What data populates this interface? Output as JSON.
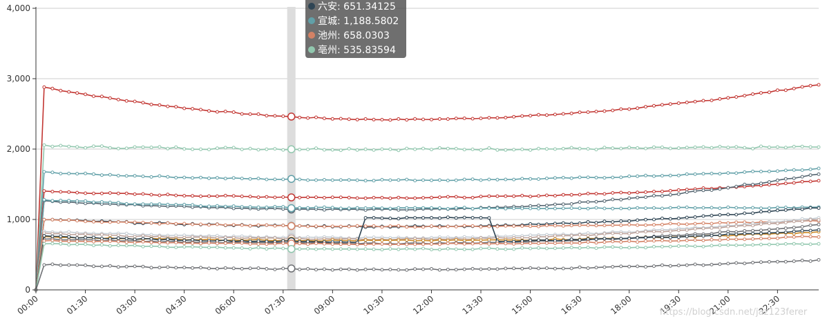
{
  "chart_data": {
    "type": "line",
    "title": "",
    "xlabel": "",
    "ylabel": "",
    "ylim": [
      0,
      4000
    ],
    "y_ticks": [
      "0",
      "1,000",
      "2,000",
      "3,000",
      "4,000"
    ],
    "x_tick_labels": [
      "00:00",
      "01:30",
      "03:00",
      "04:30",
      "06:00",
      "07:30",
      "09:00",
      "10:30",
      "12:00",
      "13:30",
      "15:00",
      "16:30",
      "18:00",
      "19:30",
      "21:00",
      "22:30"
    ],
    "x_points": 96,
    "x_interval_minutes": 15,
    "grid": true,
    "highlight_index": 31,
    "series": [
      {
        "name": "s_red_top",
        "color": "#c23531",
        "start": 2880,
        "mid": 2420,
        "end": 2920
      },
      {
        "name": "s_green_light",
        "color": "#91c7ae",
        "start": 2040,
        "mid": 2000,
        "end": 2030
      },
      {
        "name": "s_teal",
        "color": "#61a0a8",
        "start": 1670,
        "mid": 1560,
        "end": 1720
      },
      {
        "name": "s_red_2",
        "color": "#c23531",
        "start": 1400,
        "mid": 1310,
        "end": 1550
      },
      {
        "name": "s_slate",
        "color": "#546570",
        "start": 1260,
        "mid": 1140,
        "end": 1650
      },
      {
        "name": "s_teal_2",
        "color": "#61a0a8",
        "start": 1280,
        "mid": 1160,
        "end": 1170
      },
      {
        "name": "s_navy",
        "color": "#2f4554",
        "start": 1000,
        "mid": 900,
        "end": 1170
      },
      {
        "name": "s_salmon",
        "color": "#d48265",
        "start": 1000,
        "mid": 900,
        "end": 980
      },
      {
        "name": "s_pink_light",
        "color": "#c4ccd3",
        "start": 830,
        "mid": 740,
        "end": 1020
      },
      {
        "name": "s_rose",
        "color": "#bda29a",
        "start": 800,
        "mid": 720,
        "end": 1000
      },
      {
        "name": "s_orange",
        "color": "#ca8622",
        "start": 750,
        "mid": 700,
        "end": 820
      },
      {
        "name": "s_brown",
        "color": "#6e7074",
        "start": 720,
        "mid": 660,
        "end": 920
      },
      {
        "name": "s_navy_2",
        "color": "#2f4554",
        "start": 760,
        "mid": 680,
        "end": 850
      },
      {
        "name": "s_salmon_2",
        "color": "#d48265",
        "start": 700,
        "mid": 650,
        "end": 760
      },
      {
        "name": "s_green_2",
        "color": "#91c7ae",
        "start": 660,
        "mid": 580,
        "end": 660
      },
      {
        "name": "s_grey_bottom",
        "color": "#6e7074",
        "start": 360,
        "mid": 290,
        "end": 420
      }
    ],
    "tooltip": {
      "rows": [
        {
          "label": "六安: 651.34125",
          "color": "#2f4554"
        },
        {
          "label": "宣城: 1,188.5802",
          "color": "#61a0a8"
        },
        {
          "label": "池州: 658.0303",
          "color": "#d48265"
        },
        {
          "label": "亳州: 535.83594",
          "color": "#91c7ae"
        }
      ]
    },
    "watermark": "https://blog.csdn.net/jaz123ferer"
  }
}
